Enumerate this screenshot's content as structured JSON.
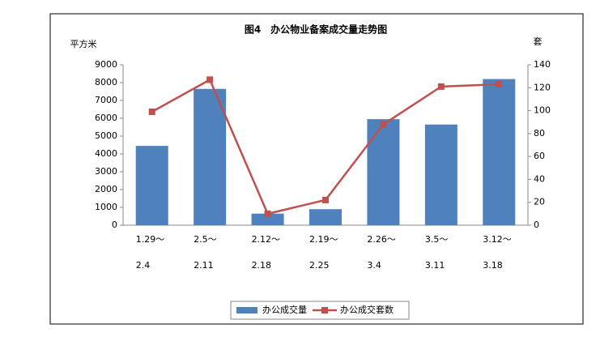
{
  "chart_data": {
    "type": "bar",
    "title": "图4　办公物业备案成交量走势图",
    "y_label": "平方米",
    "y2_label": "套",
    "categories": [
      [
        "1.29～",
        "2.4"
      ],
      [
        "2.5～",
        "2.11"
      ],
      [
        "2.12～",
        "2.18"
      ],
      [
        "2.19～",
        "2.25"
      ],
      [
        "2.26～",
        "3.4"
      ],
      [
        "3.5～",
        "3.11"
      ],
      [
        "3.12～",
        "3.18"
      ]
    ],
    "series": [
      {
        "name": "办公成交量",
        "type": "bar",
        "color": "#4f81bd",
        "values": [
          4450,
          7650,
          650,
          900,
          5950,
          5650,
          8200
        ]
      },
      {
        "name": "办公成交套数",
        "type": "line",
        "axis": "y2",
        "color": "#c0504d",
        "values": [
          99,
          127,
          10,
          22,
          88,
          121,
          123
        ]
      }
    ],
    "ylim": [
      0,
      9000
    ],
    "yticks": [
      0,
      1000,
      2000,
      3000,
      4000,
      5000,
      6000,
      7000,
      8000,
      9000
    ],
    "y2lim": [
      0,
      140
    ],
    "y2ticks": [
      0,
      20,
      40,
      60,
      80,
      100,
      120,
      140
    ],
    "legend": "bottom",
    "grid": false
  }
}
